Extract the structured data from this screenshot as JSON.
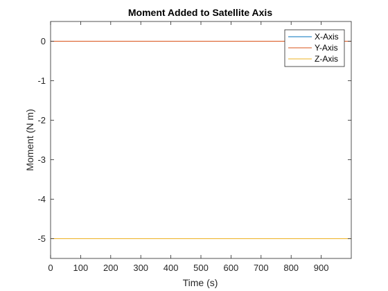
{
  "chart_data": {
    "type": "line",
    "title": "Moment Added to Satellite Axis",
    "xlabel": "Time (s)",
    "ylabel": "Moment (N m)",
    "xlim": [
      0,
      1000
    ],
    "ylim": [
      -5.5,
      0.5
    ],
    "xticks": [
      0,
      100,
      200,
      300,
      400,
      500,
      600,
      700,
      800,
      900
    ],
    "yticks": [
      0,
      -1,
      -2,
      -3,
      -4,
      -5
    ],
    "grid": false,
    "legend_position": "top-right",
    "series": [
      {
        "name": "X-Axis",
        "color": "#0072BD",
        "x": [
          0,
          1000
        ],
        "y": [
          0,
          0
        ]
      },
      {
        "name": "Y-Axis",
        "color": "#D95319",
        "x": [
          0,
          1000
        ],
        "y": [
          0,
          0
        ]
      },
      {
        "name": "Z-Axis",
        "color": "#EDB120",
        "x": [
          0,
          1000
        ],
        "y": [
          -5,
          -5
        ]
      }
    ]
  }
}
